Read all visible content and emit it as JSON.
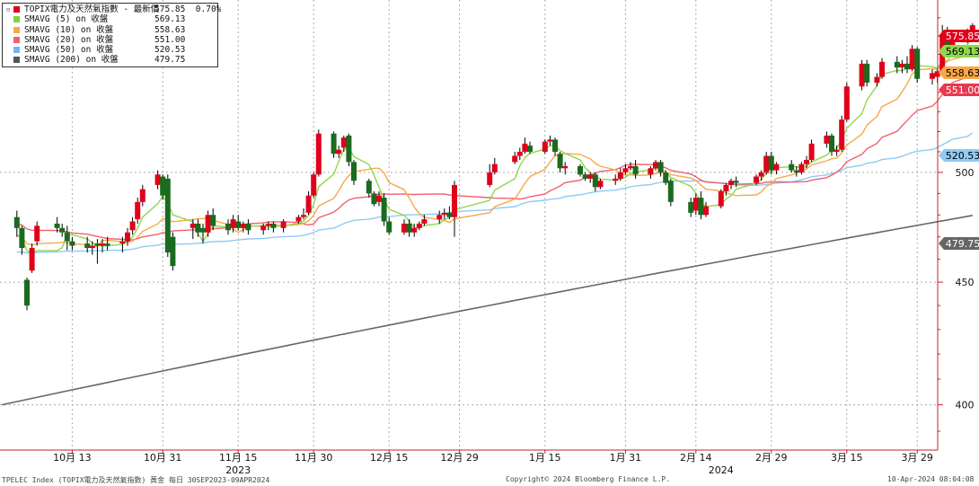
{
  "legend": {
    "main": {
      "name": "TOPIX電力及天然氣指數 - 最新價",
      "value": "575.85",
      "change": "0.70%",
      "color": "#e0001b"
    },
    "items": [
      {
        "name": "SMAVG (5)  on 收盤",
        "value": "569.13",
        "color": "#7fd13b"
      },
      {
        "name": "SMAVG (10)  on 收盤",
        "value": "558.63",
        "color": "#f7a84a"
      },
      {
        "name": "SMAVG (20)  on 收盤",
        "value": "551.00",
        "color": "#f0606e"
      },
      {
        "name": "SMAVG (50)  on 收盤",
        "value": "520.53",
        "color": "#6fb6f2"
      },
      {
        "name": "SMAVG (200)  on 收盤",
        "value": "479.75",
        "color": "#555555"
      }
    ]
  },
  "footer": {
    "left": "TPELEC Index (TOPIX電力及天然氣指數) 黃金  每日 30SEP2023-09APR2024",
    "center": "Copyright© 2024 Bloomberg Finance L.P.",
    "right": "10-Apr-2024 08:04:08"
  },
  "chart_data": {
    "type": "candlestick",
    "scale": "log",
    "ylim": [
      383,
      590
    ],
    "y_ticks": [
      400,
      450,
      500
    ],
    "x_tick_labels": [
      "10月 13",
      "10月 31",
      "11月 15",
      "11月 30",
      "12月 15",
      "12月 29",
      "1月 15",
      "1月 31",
      "2月 14",
      "2月 29",
      "3月 15",
      "3月 29"
    ],
    "year_labels": [
      "2023",
      "2024"
    ],
    "last_value_labels": [
      {
        "value": "575.85",
        "color": "#e0001b"
      },
      {
        "value": "569.13",
        "color": "#8ed84c"
      },
      {
        "value": "558.63",
        "color": "#f7a84a"
      },
      {
        "value": "551.00",
        "color": "#e8394f"
      },
      {
        "value": "520.53",
        "color": "#8ecbf5"
      },
      {
        "value": "479.75",
        "color": "#666666"
      }
    ],
    "up_color": "#e0001b",
    "down_color": "#1a6b1f",
    "candles": [
      [
        "2023-10-02",
        479,
        482,
        470,
        474
      ],
      [
        "2023-10-03",
        474,
        475,
        462,
        465
      ],
      [
        "2023-10-04",
        451,
        452,
        438,
        440
      ],
      [
        "2023-10-05",
        455,
        467,
        454,
        465
      ],
      [
        "2023-10-06",
        468,
        477,
        466,
        475
      ],
      [
        "2023-10-10",
        476,
        479,
        472,
        474
      ],
      [
        "2023-10-11",
        474,
        476,
        470,
        472
      ],
      [
        "2023-10-12",
        472,
        475,
        464,
        468
      ],
      [
        "2023-10-13",
        468,
        470,
        464,
        466
      ],
      [
        "2023-10-16",
        467,
        470,
        463,
        465
      ],
      [
        "2023-10-17",
        465,
        468,
        462,
        466
      ],
      [
        "2023-10-18",
        467,
        469,
        458,
        466
      ],
      [
        "2023-10-19",
        466,
        469,
        463,
        467
      ],
      [
        "2023-10-20",
        467,
        470,
        464,
        466
      ],
      [
        "2023-10-23",
        467,
        470,
        463,
        468
      ],
      [
        "2023-10-24",
        468,
        474,
        466,
        472
      ],
      [
        "2023-10-25",
        473,
        479,
        471,
        477
      ],
      [
        "2023-10-26",
        478,
        488,
        476,
        486
      ],
      [
        "2023-10-27",
        486,
        494,
        484,
        492
      ],
      [
        "2023-10-30",
        494,
        501,
        492,
        499
      ],
      [
        "2023-10-31",
        498,
        499,
        487,
        489
      ],
      [
        "2023-11-01",
        497,
        499,
        461,
        463
      ],
      [
        "2023-11-02",
        470,
        472,
        455,
        457
      ],
      [
        "2023-11-06",
        474,
        478,
        469,
        476
      ],
      [
        "2023-11-07",
        476,
        478,
        470,
        472
      ],
      [
        "2023-11-08",
        474,
        476,
        467,
        472
      ],
      [
        "2023-11-09",
        472,
        482,
        470,
        480
      ],
      [
        "2023-11-10",
        480,
        483,
        473,
        475
      ],
      [
        "2023-11-13",
        476,
        478,
        471,
        473
      ],
      [
        "2023-11-14",
        474,
        480,
        472,
        478
      ],
      [
        "2023-11-15",
        477,
        480,
        473,
        474
      ],
      [
        "2023-11-16",
        474,
        477,
        472,
        476
      ],
      [
        "2023-11-17",
        476,
        478,
        471,
        473
      ],
      [
        "2023-11-20",
        473,
        476,
        471,
        475
      ],
      [
        "2023-11-21",
        475,
        477,
        473,
        476
      ],
      [
        "2023-11-22",
        476,
        477,
        472,
        474
      ],
      [
        "2023-11-24",
        474,
        478,
        472,
        477
      ],
      [
        "2023-11-27",
        477,
        480,
        476,
        479
      ],
      [
        "2023-11-28",
        479,
        483,
        478,
        480
      ],
      [
        "2023-11-29",
        481,
        491,
        480,
        489
      ],
      [
        "2023-11-30",
        489,
        500,
        488,
        499
      ],
      [
        "2023-12-01",
        499,
        521,
        498,
        519
      ],
      [
        "2023-12-04",
        519,
        520,
        507,
        509
      ],
      [
        "2023-12-05",
        509,
        513,
        507,
        511
      ],
      [
        "2023-12-06",
        512,
        518,
        510,
        517
      ],
      [
        "2023-12-07",
        518,
        519,
        503,
        505
      ],
      [
        "2023-12-08",
        505,
        506,
        494,
        496
      ],
      [
        "2023-12-11",
        496,
        497,
        488,
        490
      ],
      [
        "2023-12-12",
        490,
        491,
        484,
        485
      ],
      [
        "2023-12-13",
        486,
        491,
        484,
        489
      ],
      [
        "2023-12-14",
        488,
        490,
        475,
        477
      ],
      [
        "2023-12-15",
        477,
        479,
        471,
        472
      ],
      [
        "2023-12-18",
        472,
        478,
        471,
        476
      ],
      [
        "2023-12-19",
        476,
        478,
        470,
        472
      ],
      [
        "2023-12-20",
        472,
        476,
        470,
        474
      ],
      [
        "2023-12-21",
        474,
        477,
        473,
        476
      ],
      [
        "2023-12-22",
        476,
        480,
        475,
        478
      ],
      [
        "2023-12-25",
        478,
        482,
        476,
        480
      ],
      [
        "2023-12-26",
        480,
        483,
        478,
        481
      ],
      [
        "2023-12-27",
        481,
        484,
        478,
        479
      ],
      [
        "2023-12-28",
        479,
        496,
        470,
        494
      ],
      [
        "2024-01-04",
        494,
        504,
        493,
        500
      ],
      [
        "2024-01-05",
        500,
        507,
        499,
        504
      ],
      [
        "2024-01-09",
        505,
        510,
        504,
        508
      ],
      [
        "2024-01-10",
        508,
        512,
        506,
        510
      ],
      [
        "2024-01-11",
        510,
        517,
        509,
        514
      ],
      [
        "2024-01-12",
        513,
        515,
        509,
        510
      ],
      [
        "2024-01-15",
        510,
        516,
        509,
        515
      ],
      [
        "2024-01-16",
        515,
        518,
        513,
        516
      ],
      [
        "2024-01-17",
        516,
        517,
        508,
        510
      ],
      [
        "2024-01-18",
        509,
        510,
        500,
        502
      ],
      [
        "2024-01-19",
        502,
        505,
        499,
        503
      ],
      [
        "2024-01-22",
        503,
        504,
        498,
        499
      ],
      [
        "2024-01-23",
        499,
        500,
        496,
        497
      ],
      [
        "2024-01-24",
        497,
        500,
        495,
        499
      ],
      [
        "2024-01-25",
        499,
        500,
        491,
        493
      ],
      [
        "2024-01-26",
        493,
        497,
        492,
        496
      ],
      [
        "2024-01-29",
        496,
        499,
        494,
        497
      ],
      [
        "2024-01-30",
        497,
        502,
        496,
        500
      ],
      [
        "2024-01-31",
        500,
        504,
        499,
        502
      ],
      [
        "2024-02-01",
        502,
        505,
        501,
        503
      ],
      [
        "2024-02-02",
        503,
        506,
        497,
        499
      ],
      [
        "2024-02-05",
        499,
        503,
        497,
        502
      ],
      [
        "2024-02-06",
        502,
        506,
        501,
        505
      ],
      [
        "2024-02-07",
        505,
        506,
        498,
        500
      ],
      [
        "2024-02-08",
        500,
        501,
        494,
        495
      ],
      [
        "2024-02-09",
        496,
        497,
        484,
        486
      ],
      [
        "2024-02-13",
        486,
        488,
        479,
        481
      ],
      [
        "2024-02-14",
        482,
        490,
        480,
        488
      ],
      [
        "2024-02-15",
        488,
        491,
        478,
        480
      ],
      [
        "2024-02-16",
        480,
        486,
        479,
        484
      ],
      [
        "2024-02-19",
        484,
        492,
        483,
        491
      ],
      [
        "2024-02-20",
        491,
        495,
        489,
        494
      ],
      [
        "2024-02-21",
        494,
        497,
        492,
        496
      ],
      [
        "2024-02-22",
        496,
        498,
        493,
        495
      ],
      [
        "2024-02-26",
        495,
        499,
        494,
        498
      ],
      [
        "2024-02-27",
        498,
        501,
        496,
        500
      ],
      [
        "2024-02-28",
        500,
        510,
        499,
        508
      ],
      [
        "2024-02-29",
        508,
        510,
        499,
        501
      ],
      [
        "2024-03-01",
        501,
        505,
        499,
        504
      ],
      [
        "2024-03-04",
        504,
        506,
        500,
        501
      ],
      [
        "2024-03-05",
        501,
        503,
        498,
        500
      ],
      [
        "2024-03-06",
        500,
        505,
        499,
        504
      ],
      [
        "2024-03-07",
        504,
        508,
        502,
        506
      ],
      [
        "2024-03-08",
        506,
        516,
        505,
        514
      ],
      [
        "2024-03-11",
        514,
        520,
        512,
        518
      ],
      [
        "2024-03-12",
        518,
        519,
        508,
        510
      ],
      [
        "2024-03-13",
        510,
        513,
        508,
        511
      ],
      [
        "2024-03-14",
        511,
        528,
        510,
        526
      ],
      [
        "2024-03-15",
        526,
        545,
        525,
        543
      ],
      [
        "2024-03-18",
        543,
        557,
        541,
        555
      ],
      [
        "2024-03-19",
        555,
        557,
        543,
        545
      ],
      [
        "2024-03-21",
        545,
        550,
        543,
        548
      ],
      [
        "2024-03-22",
        548,
        558,
        547,
        556
      ],
      [
        "2024-03-25",
        556,
        559,
        550,
        553
      ],
      [
        "2024-03-26",
        553,
        557,
        550,
        555
      ],
      [
        "2024-03-27",
        555,
        559,
        550,
        552
      ],
      [
        "2024-03-28",
        552,
        565,
        551,
        563
      ],
      [
        "2024-03-29",
        563,
        564,
        545,
        547
      ],
      [
        "2024-04-01",
        547,
        552,
        544,
        550
      ],
      [
        "2024-04-02",
        548,
        552,
        545,
        551
      ],
      [
        "2024-04-03",
        551,
        576,
        549,
        570
      ],
      [
        "2024-04-04",
        570,
        575,
        563,
        565
      ],
      [
        "2024-04-05",
        565,
        570,
        563,
        568
      ],
      [
        "2024-04-08",
        568,
        574,
        566,
        572
      ],
      [
        "2024-04-09",
        572,
        577,
        570,
        575.85
      ]
    ]
  }
}
